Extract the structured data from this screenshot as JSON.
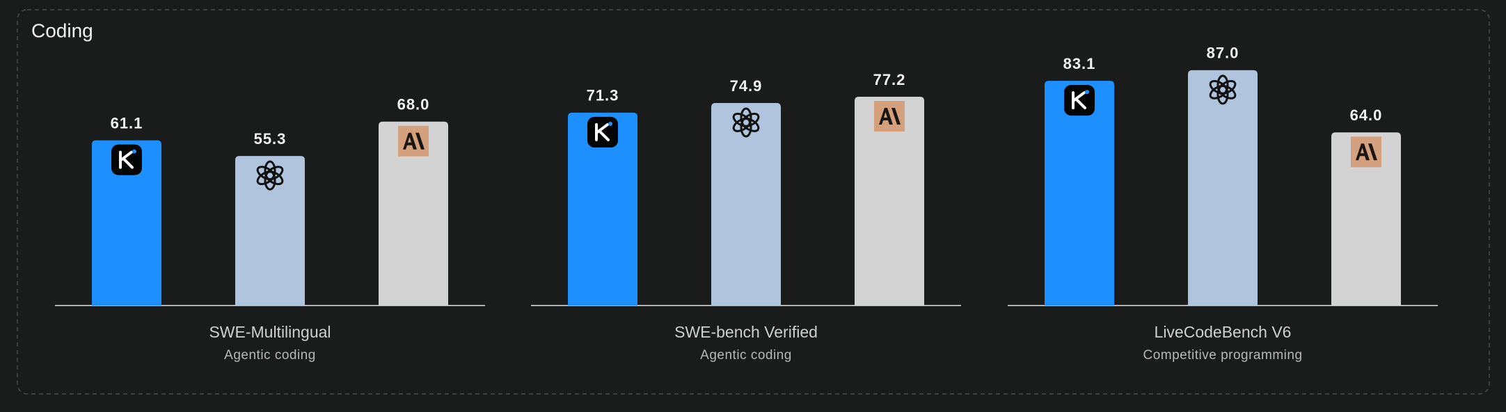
{
  "title": "Coding",
  "chart_data": [
    {
      "type": "bar",
      "title": "SWE-Multilingual",
      "subtitle": "Agentic coding",
      "values": [
        61.1,
        55.3,
        68.0
      ],
      "value_labels": [
        "61.1",
        "55.3",
        "68.0"
      ],
      "colors": [
        "#1e8fff",
        "#b0c4de",
        "#d3d3d3"
      ]
    },
    {
      "type": "bar",
      "title": "SWE-bench Verified",
      "subtitle": "Agentic coding",
      "values": [
        71.3,
        74.9,
        77.2
      ],
      "value_labels": [
        "71.3",
        "74.9",
        "77.2"
      ],
      "colors": [
        "#1e8fff",
        "#b0c4de",
        "#d3d3d3"
      ]
    },
    {
      "type": "bar",
      "title": "LiveCodeBench V6",
      "subtitle": "Competitive programming",
      "values": [
        83.1,
        87.0,
        64.0
      ],
      "value_labels": [
        "83.1",
        "87.0",
        "64.0"
      ],
      "colors": [
        "#1e8fff",
        "#b0c4de",
        "#d3d3d3"
      ]
    }
  ]
}
